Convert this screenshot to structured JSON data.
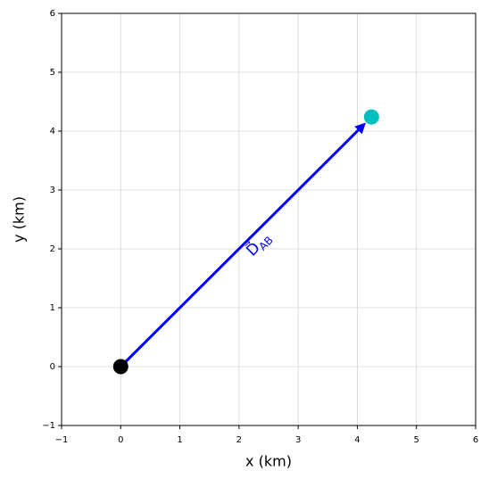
{
  "chart_data": {
    "type": "scatter",
    "xlabel": "x (km)",
    "ylabel": "y (km)",
    "xlim": [
      -1,
      6
    ],
    "ylim": [
      -1,
      6
    ],
    "xticks": [
      {
        "value": -1,
        "label": "−1"
      },
      0,
      1,
      2,
      3,
      4,
      5,
      6
    ],
    "yticks": [
      {
        "value": -1,
        "label": "−1"
      },
      0,
      1,
      2,
      3,
      4,
      5,
      6
    ],
    "grid": true,
    "points": [
      {
        "x": 0,
        "y": 0,
        "color": "#000000"
      },
      {
        "x": 4.24,
        "y": 4.24,
        "color": "#00bfbf"
      }
    ],
    "arrow": {
      "from": 0,
      "to": 1,
      "color": "#0000ff",
      "label": "D⃗",
      "label_sub": "AB"
    }
  }
}
